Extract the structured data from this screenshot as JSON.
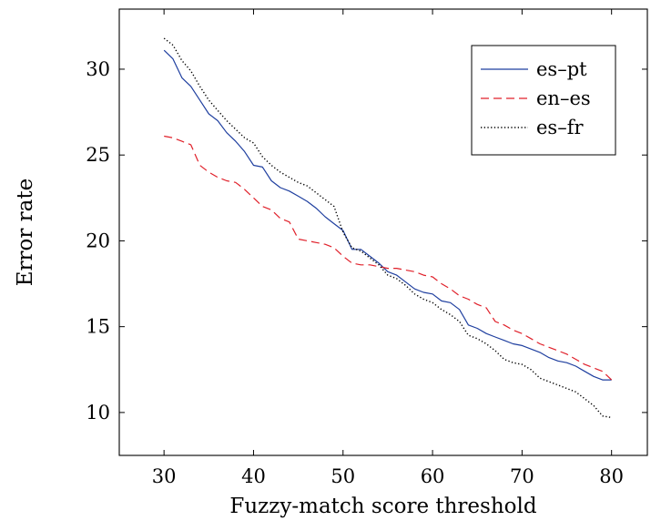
{
  "chart_data": {
    "type": "line",
    "title": "",
    "xlabel": "Fuzzy-match score threshold",
    "ylabel": "Error rate",
    "xlim": [
      25,
      84
    ],
    "ylim": [
      7.5,
      33.5
    ],
    "xticks": [
      30,
      40,
      50,
      60,
      70,
      80
    ],
    "yticks": [
      10,
      15,
      20,
      25,
      30
    ],
    "grid": false,
    "legend_position": "top-right",
    "series": [
      {
        "name": "es–pt",
        "color": "#1f3f9f",
        "style": "solid",
        "x": [
          30,
          31,
          32,
          33,
          34,
          35,
          36,
          37,
          38,
          39,
          40,
          41,
          42,
          43,
          44,
          45,
          46,
          47,
          48,
          49,
          50,
          51,
          52,
          53,
          54,
          55,
          56,
          57,
          58,
          59,
          60,
          61,
          62,
          63,
          64,
          65,
          66,
          67,
          68,
          69,
          70,
          71,
          72,
          73,
          74,
          75,
          76,
          77,
          78,
          79,
          80
        ],
        "values": [
          31.1,
          30.6,
          29.5,
          29.0,
          28.2,
          27.4,
          27.0,
          26.3,
          25.8,
          25.2,
          24.4,
          24.3,
          23.5,
          23.1,
          22.9,
          22.6,
          22.3,
          21.9,
          21.4,
          21.0,
          20.6,
          19.5,
          19.5,
          19.1,
          18.7,
          18.2,
          18.0,
          17.6,
          17.2,
          17.0,
          16.9,
          16.5,
          16.4,
          16.0,
          15.1,
          14.9,
          14.6,
          14.4,
          14.2,
          14.0,
          13.9,
          13.7,
          13.5,
          13.2,
          13.0,
          12.9,
          12.7,
          12.4,
          12.1,
          11.9,
          11.9
        ]
      },
      {
        "name": "en–es",
        "color": "#e0202a",
        "style": "dashed",
        "x": [
          30,
          31,
          32,
          33,
          34,
          35,
          36,
          37,
          38,
          39,
          40,
          41,
          42,
          43,
          44,
          45,
          46,
          47,
          48,
          49,
          50,
          51,
          52,
          53,
          54,
          55,
          56,
          57,
          58,
          59,
          60,
          61,
          62,
          63,
          64,
          65,
          66,
          67,
          68,
          69,
          70,
          71,
          72,
          73,
          74,
          75,
          76,
          77,
          78,
          79,
          80
        ],
        "values": [
          26.1,
          26.0,
          25.8,
          25.6,
          24.4,
          24.0,
          23.7,
          23.5,
          23.4,
          23.0,
          22.5,
          22.0,
          21.8,
          21.3,
          21.1,
          20.1,
          20.0,
          19.9,
          19.8,
          19.6,
          19.1,
          18.7,
          18.6,
          18.6,
          18.5,
          18.4,
          18.4,
          18.3,
          18.2,
          18.0,
          17.9,
          17.5,
          17.2,
          16.8,
          16.6,
          16.3,
          16.1,
          15.3,
          15.1,
          14.8,
          14.6,
          14.3,
          14.0,
          13.8,
          13.6,
          13.4,
          13.1,
          12.8,
          12.6,
          12.4,
          11.9
        ]
      },
      {
        "name": "es–fr",
        "color": "#000000",
        "style": "dotted",
        "x": [
          30,
          31,
          32,
          33,
          34,
          35,
          36,
          37,
          38,
          39,
          40,
          41,
          42,
          43,
          44,
          45,
          46,
          47,
          48,
          49,
          50,
          51,
          52,
          53,
          54,
          55,
          56,
          57,
          58,
          59,
          60,
          61,
          62,
          63,
          64,
          65,
          66,
          67,
          68,
          69,
          70,
          71,
          72,
          73,
          74,
          75,
          76,
          77,
          78,
          79,
          80
        ],
        "values": [
          31.8,
          31.4,
          30.5,
          29.9,
          29.0,
          28.2,
          27.6,
          27.0,
          26.5,
          26.0,
          25.7,
          24.9,
          24.4,
          24.0,
          23.7,
          23.4,
          23.2,
          22.8,
          22.4,
          22.0,
          20.5,
          19.6,
          19.4,
          19.0,
          18.6,
          18.0,
          17.8,
          17.4,
          16.9,
          16.6,
          16.4,
          16.0,
          15.7,
          15.3,
          14.5,
          14.3,
          14.0,
          13.6,
          13.1,
          12.9,
          12.8,
          12.5,
          12.0,
          11.8,
          11.6,
          11.4,
          11.2,
          10.8,
          10.4,
          9.8,
          9.7
        ]
      }
    ]
  }
}
